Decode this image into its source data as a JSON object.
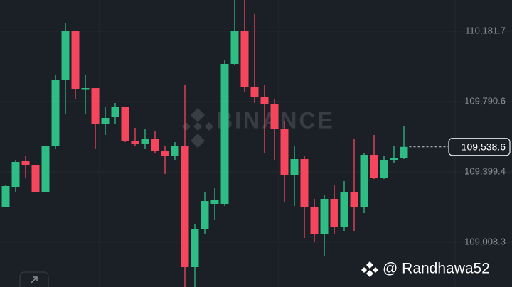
{
  "chart_data": {
    "type": "candlestick",
    "watermark": "BINANCE",
    "credit": "@ Randhawa52",
    "up_color": "#2ebd85",
    "down_color": "#f6465d",
    "ylim": [
      108759.5,
      110355.5
    ],
    "yticks": [
      {
        "value": 110181.7,
        "label": "110,181.7"
      },
      {
        "value": 109790.6,
        "label": "109,790.6"
      },
      {
        "value": 109399.4,
        "label": "109,399.4"
      },
      {
        "value": 109008.3,
        "label": "109,008.3"
      }
    ],
    "grid": true,
    "last_price": {
      "value": 109538.6,
      "label": "109,538.6"
    },
    "open": [
      109202.0,
      109316.5,
      109458.7,
      109439.0,
      109288.9,
      109545.6,
      109909.1,
      110181.7,
      109861.7,
      109865.6,
      109664.2,
      109703.7,
      109759.0,
      109573.4,
      109557.6,
      109581.3,
      109514.0,
      109490.3,
      109541.7,
      108870.1,
      109079.5,
      109221.7,
      109221.7,
      109999.9,
      110185.6,
      109873.5,
      109814.3,
      109778.7,
      109636.6,
      109383.7,
      109470.6,
      109202.0,
      109051.8,
      109249.4,
      109091.3,
      109288.9,
      109202.0,
      109494.3,
      109367.9,
      109466.6,
      109478.5
    ],
    "high": [
      109328.4,
      109466.6,
      109486.4,
      109439.0,
      109545.6,
      109940.7,
      110229.1,
      110181.7,
      109940.7,
      109865.6,
      109762.9,
      109782.7,
      109762.9,
      109644.4,
      109636.6,
      109624.7,
      109545.6,
      109565.4,
      109881.4,
      109111.1,
      109288.9,
      109308.6,
      110019.7,
      110355.5,
      110355.5,
      110276.5,
      109881.4,
      109802.4,
      109683.9,
      109545.6,
      109486.4,
      109249.4,
      109269.1,
      109328.4,
      109348.1,
      109585.2,
      109506.1,
      109605.0,
      109486.4,
      109545.6,
      109652.3
    ],
    "low": [
      109202.0,
      109288.9,
      109367.9,
      109288.9,
      109288.9,
      109525.9,
      109723.4,
      109802.4,
      109723.4,
      109525.9,
      109605.0,
      109664.2,
      109565.4,
      109545.6,
      109525.9,
      109506.1,
      109387.6,
      109466.6,
      108759.5,
      108759.5,
      109051.8,
      109130.9,
      109209.9,
      109992.0,
      109841.9,
      109782.7,
      109506.1,
      109466.6,
      109229.6,
      109209.9,
      109032.1,
      109012.3,
      108933.3,
      109051.8,
      109071.6,
      109071.6,
      109170.4,
      109360.0,
      109360.0,
      109446.9,
      109470.6
    ],
    "close": [
      109320.5,
      109454.8,
      109439.0,
      109288.9,
      109545.6,
      109909.1,
      110181.7,
      109861.7,
      109865.6,
      109668.1,
      109699.7,
      109759.0,
      109573.4,
      109557.6,
      109581.3,
      109514.0,
      109490.3,
      109541.7,
      108870.1,
      109079.5,
      109237.5,
      109241.5,
      109999.9,
      110185.6,
      109873.5,
      109814.3,
      109778.7,
      109636.6,
      109383.7,
      109470.6,
      109202.0,
      109051.8,
      109249.4,
      109091.3,
      109288.9,
      109202.0,
      109494.3,
      109367.9,
      109466.6,
      109478.5,
      109538.6
    ]
  }
}
